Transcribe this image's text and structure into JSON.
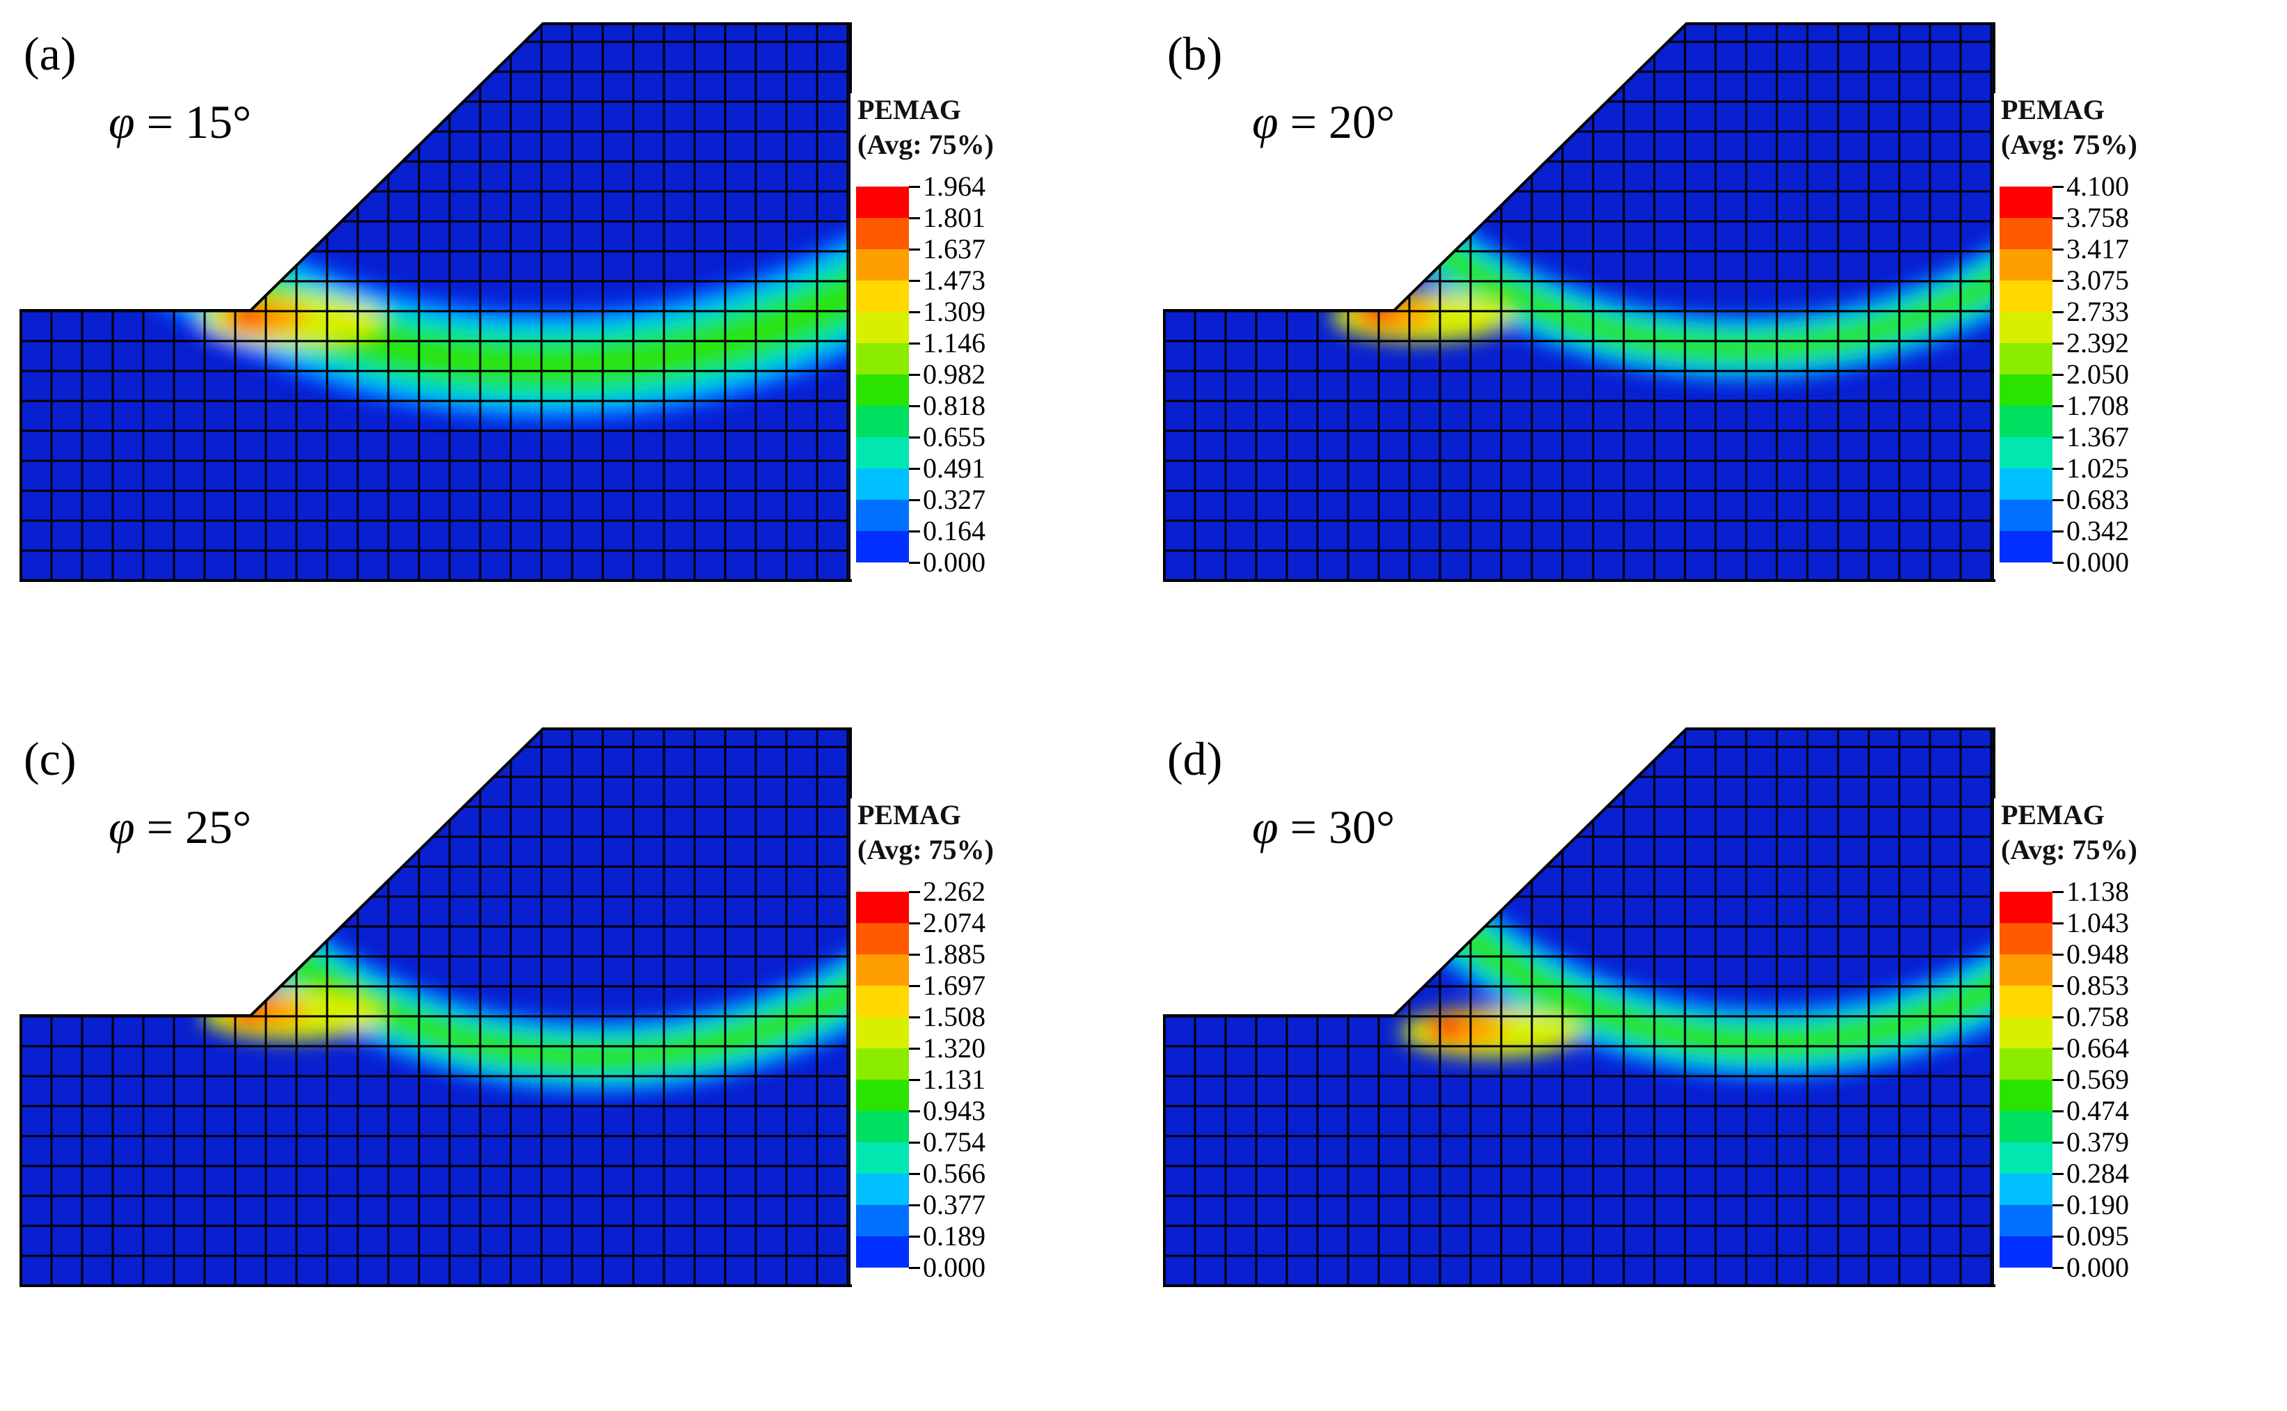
{
  "figure": {
    "panels": [
      {
        "label": "(a)",
        "phi_symbol": "φ",
        "phi_value": " = 15°",
        "legend_title": "PEMAG",
        "legend_subtitle": "(Avg: 75%)",
        "legend_values": [
          "1.964",
          "1.801",
          "1.637",
          "1.473",
          "1.309",
          "1.146",
          "0.982",
          "0.818",
          "0.655",
          "0.491",
          "0.327",
          "0.164",
          "0.000"
        ],
        "max_value": 1.964,
        "shear_band": "deep circular band through slope toe"
      },
      {
        "label": "(b)",
        "phi_symbol": "φ",
        "phi_value": " = 20°",
        "legend_title": "PEMAG",
        "legend_subtitle": "(Avg: 75%)",
        "legend_values": [
          "4.100",
          "3.758",
          "3.417",
          "3.075",
          "2.733",
          "2.392",
          "2.050",
          "1.708",
          "1.367",
          "1.025",
          "0.683",
          "0.342",
          "0.000"
        ],
        "max_value": 4.1,
        "shear_band": "shallower band through slope toe"
      },
      {
        "label": "(c)",
        "phi_symbol": "φ",
        "phi_value": " = 25°",
        "legend_title": "PEMAG",
        "legend_subtitle": "(Avg: 75%)",
        "legend_values": [
          "2.262",
          "2.074",
          "1.885",
          "1.697",
          "1.508",
          "1.320",
          "1.131",
          "0.943",
          "0.754",
          "0.566",
          "0.377",
          "0.189",
          "0.000"
        ],
        "max_value": 2.262,
        "shear_band": "shallow band through slope toe"
      },
      {
        "label": "(d)",
        "phi_symbol": "φ",
        "phi_value": " = 30°",
        "legend_title": "PEMAG",
        "legend_subtitle": "(Avg: 75%)",
        "legend_values": [
          "1.138",
          "1.043",
          "0.948",
          "0.853",
          "0.758",
          "0.664",
          "0.569",
          "0.474",
          "0.379",
          "0.284",
          "0.190",
          "0.095",
          "0.000"
        ],
        "max_value": 1.138,
        "shear_band": "shallowest band through slope toe"
      }
    ],
    "colors": {
      "contour_scale": [
        "#ff0000",
        "#ff5a00",
        "#ff9e00",
        "#ffd800",
        "#d8f000",
        "#8cec00",
        "#2ae400",
        "#00e060",
        "#00e8b0",
        "#00c0ff",
        "#0070ff",
        "#0030ff",
        "#0000ff"
      ],
      "background_field": "#0820d0",
      "mesh_line": "#000000"
    }
  }
}
